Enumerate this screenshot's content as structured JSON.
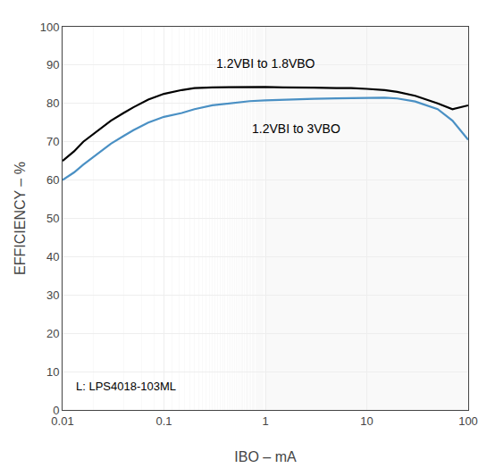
{
  "chart_data": {
    "type": "line",
    "x_label": "IBO – mA",
    "y_label": "EFFICIENCY – %",
    "log": "x",
    "grid": true,
    "xlim": [
      0.01,
      100
    ],
    "ylim": [
      0,
      100
    ],
    "xticks": [
      0.01,
      0.1,
      1,
      10,
      100
    ],
    "yticks": [
      0,
      10,
      20,
      30,
      40,
      50,
      60,
      70,
      80,
      90,
      100
    ],
    "x": [
      0.01,
      0.013,
      0.016,
      0.02,
      0.025,
      0.03,
      0.04,
      0.05,
      0.07,
      0.1,
      0.15,
      0.2,
      0.3,
      0.5,
      0.7,
      1.0,
      1.5,
      2.0,
      3.0,
      5.0,
      7.0,
      10.0,
      15.0,
      20.0,
      30.0,
      50.0,
      70.0,
      100.0
    ],
    "series": [
      {
        "color": "#000000",
        "values": [
          65.0,
          67.5,
          70.0,
          72.0,
          74.0,
          75.5,
          77.5,
          79.0,
          81.0,
          82.5,
          83.5,
          84.0,
          84.2,
          84.3,
          84.3,
          84.3,
          84.2,
          84.2,
          84.1,
          84.0,
          84.0,
          83.8,
          83.5,
          83.0,
          82.0,
          80.0,
          78.5,
          79.5
        ]
      },
      {
        "color": "#4a90c4",
        "values": [
          60.0,
          62.0,
          64.0,
          66.0,
          68.0,
          69.5,
          71.5,
          73.0,
          75.0,
          76.5,
          77.5,
          78.5,
          79.5,
          80.2,
          80.6,
          80.8,
          81.0,
          81.1,
          81.2,
          81.3,
          81.4,
          81.5,
          81.5,
          81.3,
          80.5,
          78.5,
          75.5,
          70.5
        ]
      }
    ],
    "annotations": [
      {
        "text": "1.2VBI to 1.8VBO",
        "x": 1.0,
        "y": 90.5
      },
      {
        "text": "1.2VBI to 3VBO",
        "x": 2.0,
        "y": 73.5
      },
      {
        "text": "L: LPS4018-103ML",
        "x": 0.013,
        "y": 4.0
      }
    ]
  }
}
